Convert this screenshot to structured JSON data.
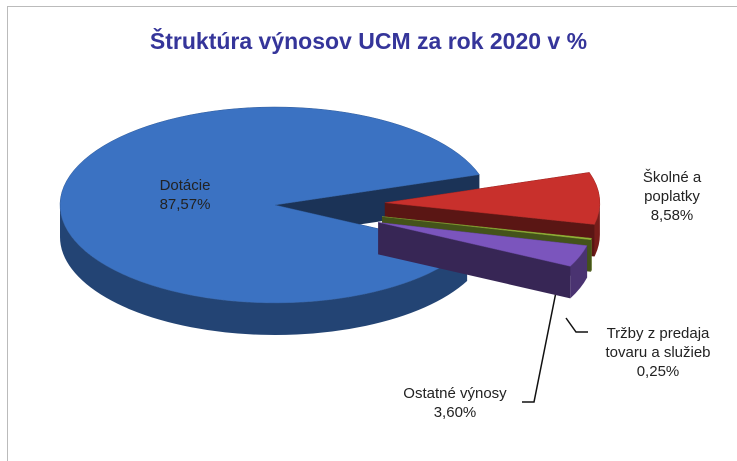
{
  "chart_data": {
    "type": "pie3d",
    "title": "Štruktúra výnosov UCM za rok 2020 v %",
    "categories": [
      "Dotácie",
      "Školné a poplatky",
      "Tržby z predaja tovaru a služieb",
      "Ostatné výnosy"
    ],
    "values": [
      87.57,
      8.58,
      0.25,
      3.6
    ],
    "value_labels": [
      "87,57%",
      "8,58%",
      "0,25%",
      "3,60%"
    ],
    "colors": [
      "#3b72c2",
      "#c8302c",
      "#98b83a",
      "#7b55bd"
    ]
  }
}
